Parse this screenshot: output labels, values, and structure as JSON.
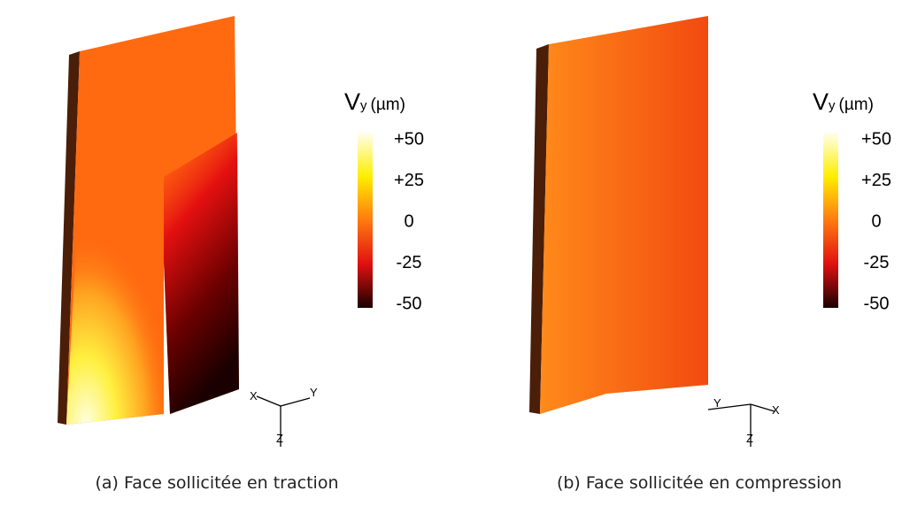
{
  "panels": [
    {
      "caption": "(a) Face sollicitée en traction",
      "colorbar": {
        "symbol": "V",
        "subscript": "y",
        "unit": "(µm)",
        "ticks": [
          {
            "value": 50,
            "label": "+50"
          },
          {
            "value": 25,
            "label": "+25"
          },
          0,
          -25,
          -50
        ]
      },
      "axes": {
        "x": "X",
        "y": "Y",
        "z": "Z"
      }
    },
    {
      "caption": "(b) Face sollicitée en compression",
      "colorbar": {
        "symbol": "V",
        "subscript": "y",
        "unit": "(µm)",
        "ticks": [
          {
            "value": 50,
            "label": "+50"
          },
          {
            "value": 25,
            "label": "+25"
          },
          0,
          -25,
          -50
        ]
      },
      "axes": {
        "x": "X",
        "y": "Y",
        "z": "Z"
      }
    }
  ]
}
